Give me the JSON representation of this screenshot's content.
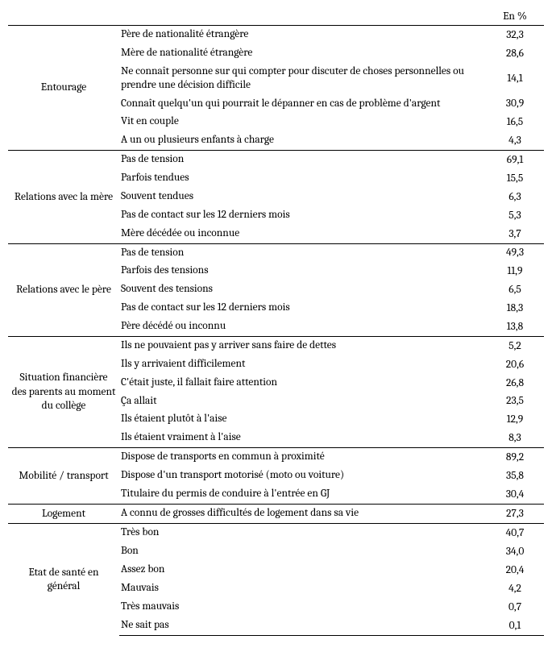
{
  "header": {
    "percent_label": "En %"
  },
  "sections": [
    {
      "category": "Entourage",
      "rows": [
        {
          "label": "Père de nationalité étrangère",
          "value": "32,3"
        },
        {
          "label": "Mère de nationalité étrangère",
          "value": "28,6"
        },
        {
          "label": "Ne connaît personne sur qui compter pour discuter de choses personnelles ou prendre une décision difficile",
          "value": "14,1"
        },
        {
          "label": "Connaît quelqu'un qui pourrait le dépanner en cas de problème d'argent",
          "value": "30,9"
        },
        {
          "label": "Vit en couple",
          "value": "16,5"
        },
        {
          "label": "A un ou plusieurs enfants à charge",
          "value": "4,3"
        }
      ]
    },
    {
      "category": "Relations avec la mère",
      "rows": [
        {
          "label": "Pas de tension",
          "value": "69,1"
        },
        {
          "label": "Parfois tendues",
          "value": "15,5"
        },
        {
          "label": "Souvent tendues",
          "value": "6,3"
        },
        {
          "label": "Pas de contact sur les 12 derniers mois",
          "value": "5,3"
        },
        {
          "label": "Mère décédée ou inconnue",
          "value": "3,7"
        }
      ]
    },
    {
      "category": "Relations avec le père",
      "rows": [
        {
          "label": "Pas de tension",
          "value": "49,3"
        },
        {
          "label": "Parfois des tensions",
          "value": "11,9"
        },
        {
          "label": "Souvent des tensions",
          "value": "6,5"
        },
        {
          "label": "Pas de contact sur les 12 derniers mois",
          "value": "18,3"
        },
        {
          "label": "Père décédé ou inconnu",
          "value": "13,8"
        }
      ]
    },
    {
      "category": "Situation financière des parents au moment du collège",
      "rows": [
        {
          "label": "Ils ne pouvaient pas y arriver sans faire de dettes",
          "value": "5,2"
        },
        {
          "label": "Ils y arrivaient difficilement",
          "value": "20,6"
        },
        {
          "label": "C'était juste, il fallait faire attention",
          "value": "26,8"
        },
        {
          "label": "Ça allait",
          "value": "23,5"
        },
        {
          "label": "Ils étaient plutôt à l'aise",
          "value": "12,9"
        },
        {
          "label": "Ils étaient vraiment à l'aise",
          "value": "8,3"
        }
      ]
    },
    {
      "category": "Mobilité / transport",
      "rows": [
        {
          "label": "Dispose de transports en commun à proximité",
          "value": "89,2"
        },
        {
          "label": "Dispose d'un transport motorisé (moto ou voiture)",
          "value": "35,8"
        },
        {
          "label": "Titulaire du permis de conduire à l'entrée en GJ",
          "value": "30,4"
        }
      ]
    },
    {
      "category": "Logement",
      "rows": [
        {
          "label": "A connu de grosses difficultés de logement dans sa vie",
          "value": "27,3"
        }
      ]
    },
    {
      "category": "Etat de santé en général",
      "rows": [
        {
          "label": "Très bon",
          "value": "40,7"
        },
        {
          "label": "Bon",
          "value": "34,0"
        },
        {
          "label": "Assez bon",
          "value": "20,4"
        },
        {
          "label": "Mauvais",
          "value": "4,2"
        },
        {
          "label": "Très mauvais",
          "value": "0,7"
        },
        {
          "label": "Ne sait pas",
          "value": "0,1"
        }
      ]
    }
  ]
}
